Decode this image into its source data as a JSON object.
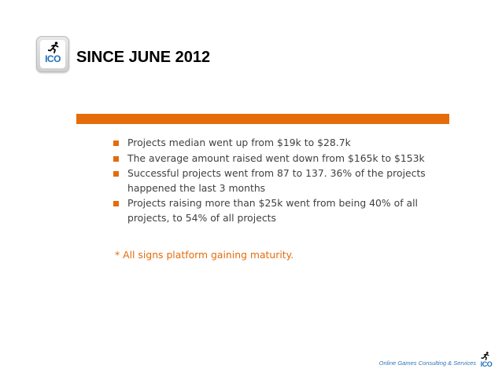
{
  "logo": {
    "icon": "running-man-icon",
    "text": "ICO"
  },
  "title": "SINCE JUNE 2012",
  "bullets": [
    "Projects median went up from $19k to $28.7k",
    "The average amount raised went down from $165k to $153k",
    "Successful projects went from 87 to 137. 36% of the projects happened the last 3 months",
    "Projects raising more than $25k went from being 40% of all projects, to 54% of all projects"
  ],
  "note": "* All signs platform gaining maturity.",
  "footer": {
    "text": "Online Games Consulting & Services",
    "logo_text": "ICO"
  },
  "colors": {
    "accent": "#e46c0a",
    "brand_blue": "#1f6fb5",
    "body_text": "#404040"
  }
}
